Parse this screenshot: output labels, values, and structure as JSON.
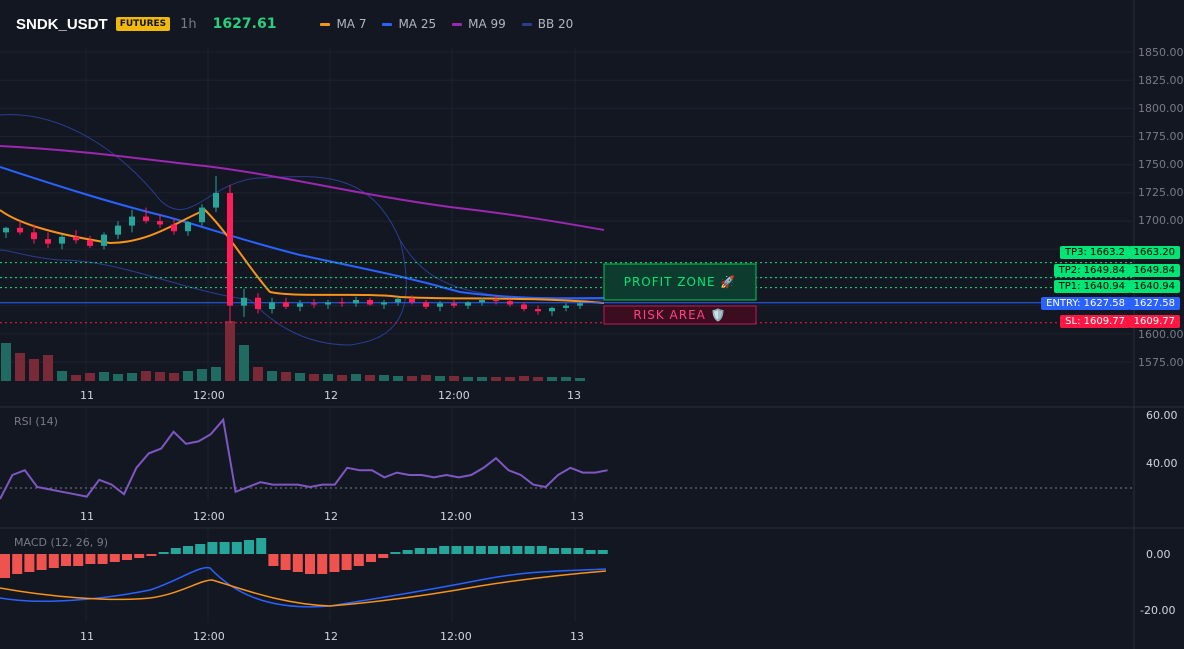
{
  "header": {
    "symbol": "SNDK_USDT",
    "badge": "FUTURES",
    "timeframe": "1h",
    "price": "1627.61",
    "legend": [
      {
        "name": "MA 7",
        "color": "#f7931a"
      },
      {
        "name": "MA 25",
        "color": "#2962ff"
      },
      {
        "name": "MA 99",
        "color": "#9c27b0"
      },
      {
        "name": "BB 20",
        "color": "#2a3d8f"
      }
    ]
  },
  "price_axis": {
    "labels": [
      "1850.00",
      "1825.00",
      "1800.00",
      "1775.00",
      "1750.00",
      "1725.00",
      "1700.00",
      "1675.00",
      "1650.00",
      "1625.00",
      "1600.00",
      "1575.00"
    ]
  },
  "time_axis": [
    "11",
    "12:00",
    "12",
    "12:00",
    "13"
  ],
  "levels": {
    "tp3": {
      "label": "TP3: 1663.2",
      "value": "1663.20",
      "price": 1663.2
    },
    "tp2": {
      "label": "TP2: 1649.84",
      "value": "1649.84",
      "price": 1649.84
    },
    "tp1": {
      "label": "TP1: 1640.94",
      "value": "1640.94",
      "price": 1640.94
    },
    "entry": {
      "label": "ENTRY: 1627.58",
      "value": "1627.58",
      "price": 1627.58
    },
    "sl": {
      "label": "SL: 1609.77",
      "value": "1609.77",
      "price": 1609.77
    }
  },
  "zones": {
    "profit": "PROFIT ZONE 🚀",
    "risk": "RISK AREA 🛡️"
  },
  "rsi": {
    "title": "RSI (14)",
    "axis": [
      "60.00",
      "40.00"
    ],
    "values": [
      25,
      35,
      37,
      30,
      29,
      28,
      27,
      26,
      33,
      31,
      27,
      38,
      44,
      46,
      53,
      48,
      49,
      52,
      58,
      28,
      30,
      32,
      31,
      31,
      31,
      30,
      31,
      31,
      38,
      37,
      37,
      34,
      36,
      35,
      35,
      34,
      35,
      34,
      35,
      38,
      42,
      37,
      35,
      31,
      30,
      35,
      38,
      36,
      36,
      37
    ]
  },
  "macd": {
    "title": "MACD (12, 26, 9)",
    "axis": [
      "0.00",
      "-20.00"
    ]
  },
  "colors": {
    "up": "#26a69a",
    "down": "#ef5350",
    "bg": "#131722",
    "grid": "#1e2230",
    "tp": "#00e676",
    "entry": "#2962ff",
    "sl": "#ff1744",
    "rsi": "#7e57c2"
  },
  "chart_data": {
    "type": "candlestick",
    "candles": [
      [
        1690,
        1695,
        1685,
        1694
      ],
      [
        1694,
        1700,
        1688,
        1690
      ],
      [
        1690,
        1697,
        1680,
        1684
      ],
      [
        1684,
        1690,
        1676,
        1680
      ],
      [
        1680,
        1688,
        1675,
        1686
      ],
      [
        1686,
        1692,
        1680,
        1683
      ],
      [
        1683,
        1687,
        1676,
        1678
      ],
      [
        1678,
        1690,
        1675,
        1688
      ],
      [
        1688,
        1700,
        1684,
        1696
      ],
      [
        1696,
        1710,
        1690,
        1704
      ],
      [
        1704,
        1712,
        1698,
        1700
      ],
      [
        1700,
        1706,
        1694,
        1697
      ],
      [
        1697,
        1702,
        1688,
        1691
      ],
      [
        1691,
        1700,
        1687,
        1699
      ],
      [
        1699,
        1715,
        1696,
        1712
      ],
      [
        1712,
        1740,
        1708,
        1725
      ],
      [
        1725,
        1732,
        1610,
        1625
      ],
      [
        1625,
        1640,
        1615,
        1632
      ],
      [
        1632,
        1636,
        1618,
        1622
      ],
      [
        1622,
        1632,
        1618,
        1628
      ],
      [
        1628,
        1632,
        1622,
        1624
      ],
      [
        1624,
        1630,
        1620,
        1627
      ],
      [
        1627,
        1631,
        1623,
        1626
      ],
      [
        1626,
        1630,
        1622,
        1628
      ],
      [
        1628,
        1632,
        1624,
        1627
      ],
      [
        1627,
        1633,
        1624,
        1630
      ],
      [
        1630,
        1632,
        1625,
        1626
      ],
      [
        1626,
        1630,
        1622,
        1628
      ],
      [
        1628,
        1633,
        1625,
        1631
      ],
      [
        1631,
        1634,
        1626,
        1628
      ],
      [
        1628,
        1630,
        1622,
        1624
      ],
      [
        1624,
        1629,
        1620,
        1627
      ],
      [
        1627,
        1630,
        1623,
        1625
      ],
      [
        1625,
        1629,
        1622,
        1628
      ],
      [
        1628,
        1632,
        1625,
        1630
      ],
      [
        1630,
        1634,
        1626,
        1629
      ],
      [
        1629,
        1631,
        1624,
        1626
      ],
      [
        1626,
        1628,
        1620,
        1622
      ],
      [
        1622,
        1625,
        1617,
        1620
      ],
      [
        1620,
        1624,
        1616,
        1623
      ],
      [
        1623,
        1627,
        1620,
        1625
      ],
      [
        1625,
        1628,
        1622,
        1627
      ]
    ]
  }
}
